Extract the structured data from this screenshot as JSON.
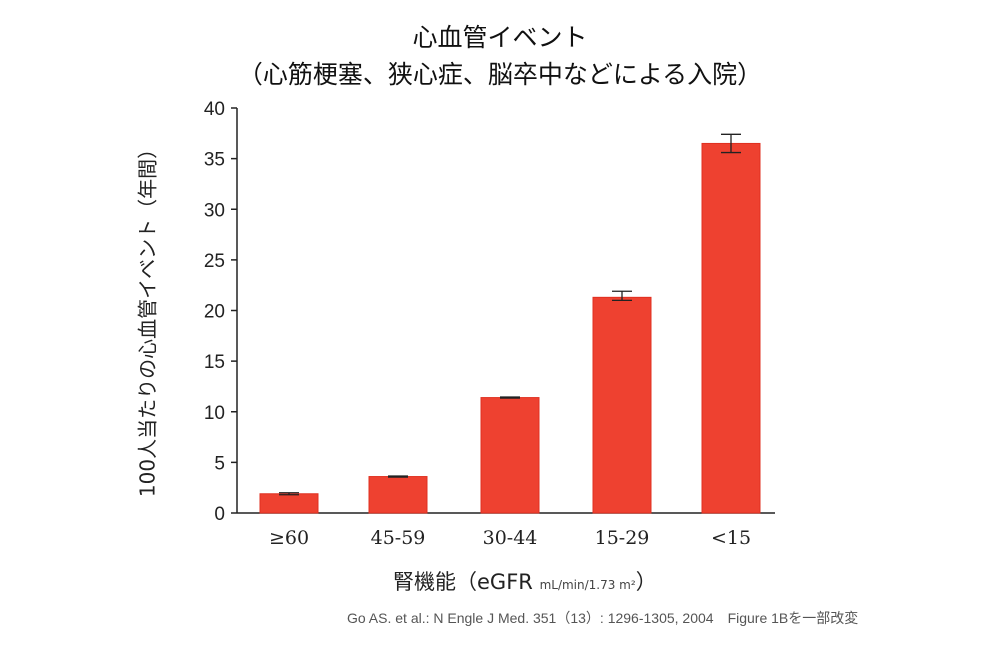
{
  "chart_data": {
    "type": "bar",
    "title": "心血管イベント",
    "subtitle": "（心筋梗塞、狭心症、脳卒中などによる入院）",
    "ylabel": "100人当たりの心血管イベント（年間）",
    "xlabel": "腎機能（eGFR",
    "xlabel_unit": "mL/min/1.73 m²",
    "xlabel_close": "）",
    "categories": [
      "≥60",
      "45-59",
      "30-44",
      "15-29",
      "<15"
    ],
    "values": [
      1.9,
      3.6,
      11.4,
      21.3,
      36.5
    ],
    "error_low": [
      1.8,
      3.55,
      11.35,
      21.0,
      35.6
    ],
    "error_high": [
      2.0,
      3.65,
      11.45,
      21.9,
      37.4
    ],
    "ylim": [
      0,
      40
    ],
    "yticks": [
      0,
      5,
      10,
      15,
      20,
      25,
      30,
      35,
      40
    ],
    "grid": false,
    "bar_color": "#ee4130"
  },
  "source": "Go AS. et al.: N Engle J Med. 351（13）: 1296-1305, 2004　Figure 1Bを一部改変"
}
